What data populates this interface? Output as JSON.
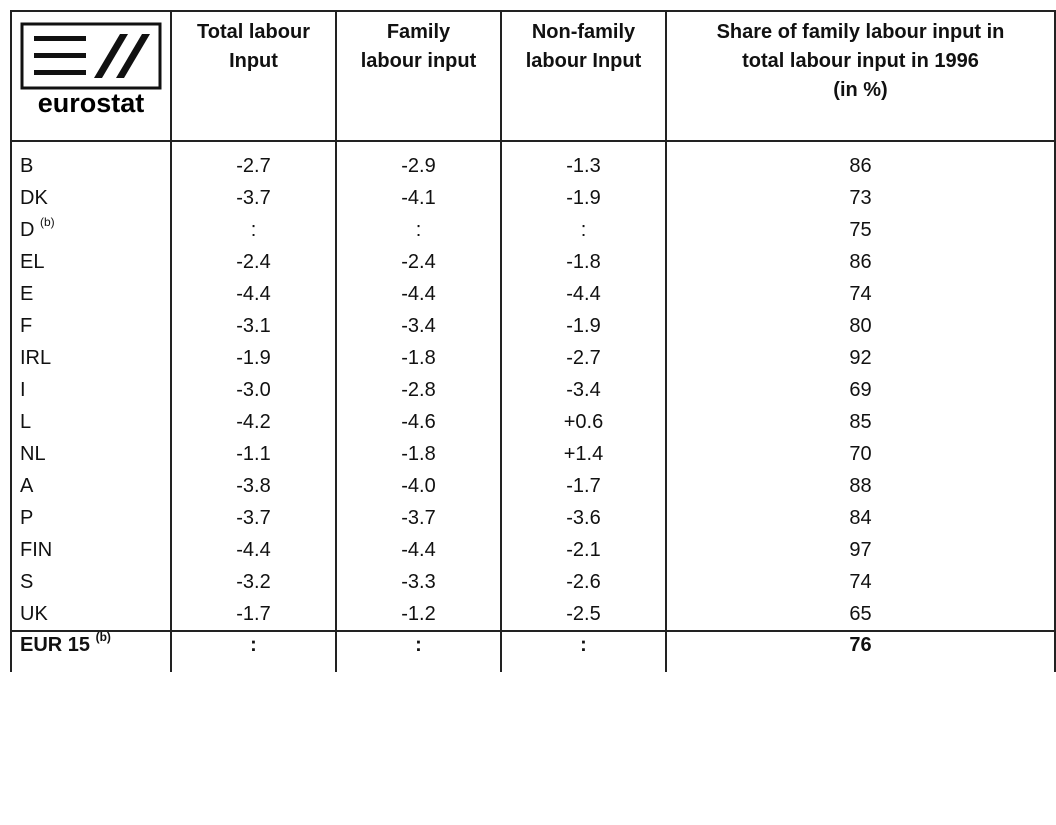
{
  "header": {
    "logo": "eurostat",
    "columns": [
      [
        "Total labour",
        "Input"
      ],
      [
        "Family",
        "labour input"
      ],
      [
        "Non-family",
        "labour Input"
      ],
      [
        "Share of family labour input in",
        "total labour input in 1996",
        "(in %)"
      ]
    ]
  },
  "table": {
    "rows": [
      [
        "B",
        "-2.7",
        "-2.9",
        "-1.3",
        "86"
      ],
      [
        "DK",
        "-3.7",
        "-4.1",
        "-1.9",
        "73"
      ],
      [
        [
          "D",
          "(b)"
        ],
        ":",
        ":",
        ":",
        "75"
      ],
      [
        "EL",
        "-2.4",
        "-2.4",
        "-1.8",
        "86"
      ],
      [
        "E",
        "-4.4",
        "-4.4",
        "-4.4",
        "74"
      ],
      [
        "F",
        "-3.1",
        "-3.4",
        "-1.9",
        "80"
      ],
      [
        "IRL",
        "-1.9",
        "-1.8",
        "-2.7",
        "92"
      ],
      [
        "I",
        "-3.0",
        "-2.8",
        "-3.4",
        "69"
      ],
      [
        "L",
        "-4.2",
        "-4.6",
        "+0.6",
        "85"
      ],
      [
        "NL",
        "-1.1",
        "-1.8",
        "+1.4",
        "70"
      ],
      [
        "A",
        "-3.8",
        "-4.0",
        "-1.7",
        "88"
      ],
      [
        "P",
        "-3.7",
        "-3.7",
        "-3.6",
        "84"
      ],
      [
        "FIN",
        "-4.4",
        "-4.4",
        "-2.1",
        "97"
      ],
      [
        "S",
        "-3.2",
        "-3.3",
        "-2.6",
        "74"
      ],
      [
        "UK",
        "-1.7",
        "-1.2",
        "-2.5",
        "65"
      ]
    ],
    "total": [
      [
        "EUR 15",
        "(b)"
      ],
      ":",
      ":",
      ":",
      "76"
    ]
  }
}
